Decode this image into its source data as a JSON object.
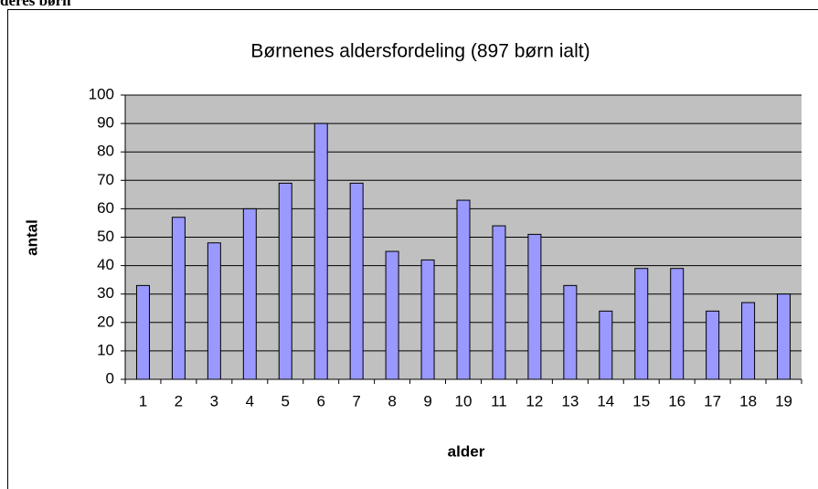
{
  "header": {
    "text": "deres børn"
  },
  "chart_data": {
    "type": "bar",
    "title": "Børnenes aldersfordeling (897 børn ialt)",
    "x_label": "alder",
    "y_label": "antal",
    "categories": [
      "1",
      "2",
      "3",
      "4",
      "5",
      "6",
      "7",
      "8",
      "9",
      "10",
      "11",
      "12",
      "13",
      "14",
      "15",
      "16",
      "17",
      "18",
      "19"
    ],
    "values": [
      33,
      57,
      48,
      60,
      69,
      90,
      69,
      45,
      42,
      63,
      54,
      51,
      33,
      24,
      39,
      39,
      24,
      27,
      30
    ],
    "color": "#9999ff",
    "plot_background": "#c0c0c0",
    "ylim": [
      0,
      100
    ],
    "yticks": [
      0,
      10,
      20,
      30,
      40,
      50,
      60,
      70,
      80,
      90,
      100
    ],
    "grid": true
  }
}
